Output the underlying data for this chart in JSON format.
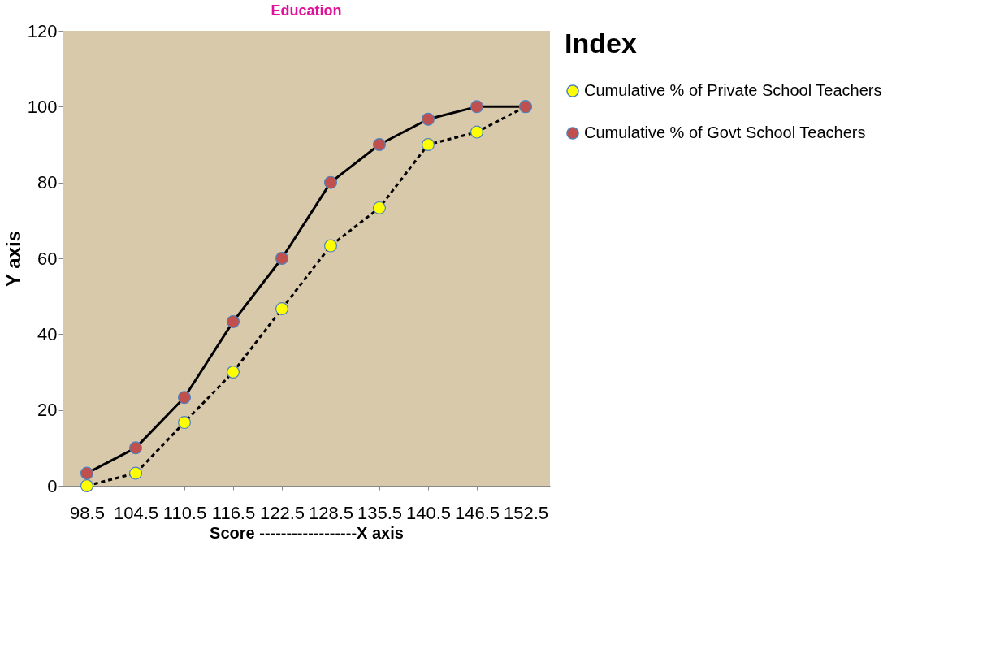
{
  "chart_data": {
    "type": "line",
    "title": "Education",
    "xlabel": "Score ------------------X axis",
    "ylabel": "Y axis",
    "legend_title": "Index",
    "categories": [
      "98.5",
      "104.5",
      "110.5",
      "116.5",
      "122.5",
      "128.5",
      "135.5",
      "140.5",
      "146.5",
      "152.5"
    ],
    "series": [
      {
        "name": "Cumulative % of Private School Teachers",
        "color": "#ffff00",
        "line_style": "dashed",
        "values": [
          0,
          3.3,
          16.7,
          30,
          46.7,
          63.3,
          73.3,
          90,
          93.3,
          100
        ]
      },
      {
        "name": "Cumulative % of Govt School Teachers",
        "color": "#c0504d",
        "line_style": "solid",
        "values": [
          3.3,
          10,
          23.3,
          43.3,
          60,
          80,
          90,
          96.7,
          100,
          100
        ]
      }
    ],
    "ylim": [
      0,
      120
    ],
    "yticks": [
      0,
      20,
      40,
      60,
      80,
      100,
      120
    ],
    "grid": false,
    "legend": "right",
    "marker": "circle"
  }
}
